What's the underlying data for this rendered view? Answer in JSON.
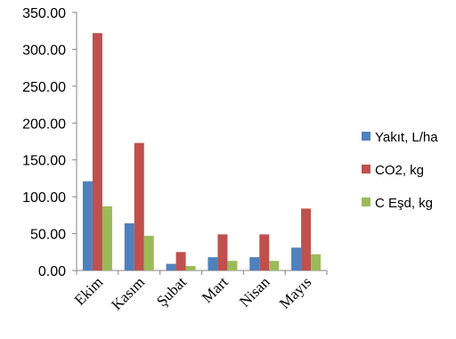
{
  "chart_data": {
    "type": "bar",
    "categories": [
      "Ekim",
      "Kasım",
      "Şubat",
      "Mart",
      "Nisan",
      "Mayıs"
    ],
    "series": [
      {
        "name": "Yakıt, L/ha",
        "color": "#4f81bd",
        "values": [
          121,
          64,
          9,
          18,
          18,
          31
        ]
      },
      {
        "name": "CO2, kg",
        "color": "#c0504d",
        "values": [
          322,
          173,
          25,
          49,
          49,
          84
        ]
      },
      {
        "name": "C Eşd, kg",
        "color": "#9bbb59",
        "values": [
          87,
          47,
          6,
          13,
          13,
          22
        ]
      }
    ],
    "y_ticks": [
      "0.00",
      "50.00",
      "100.00",
      "150.00",
      "200.00",
      "250.00",
      "300.00",
      "350.00"
    ],
    "ylim": [
      0,
      350
    ],
    "grid": false,
    "legend_position": "right"
  }
}
